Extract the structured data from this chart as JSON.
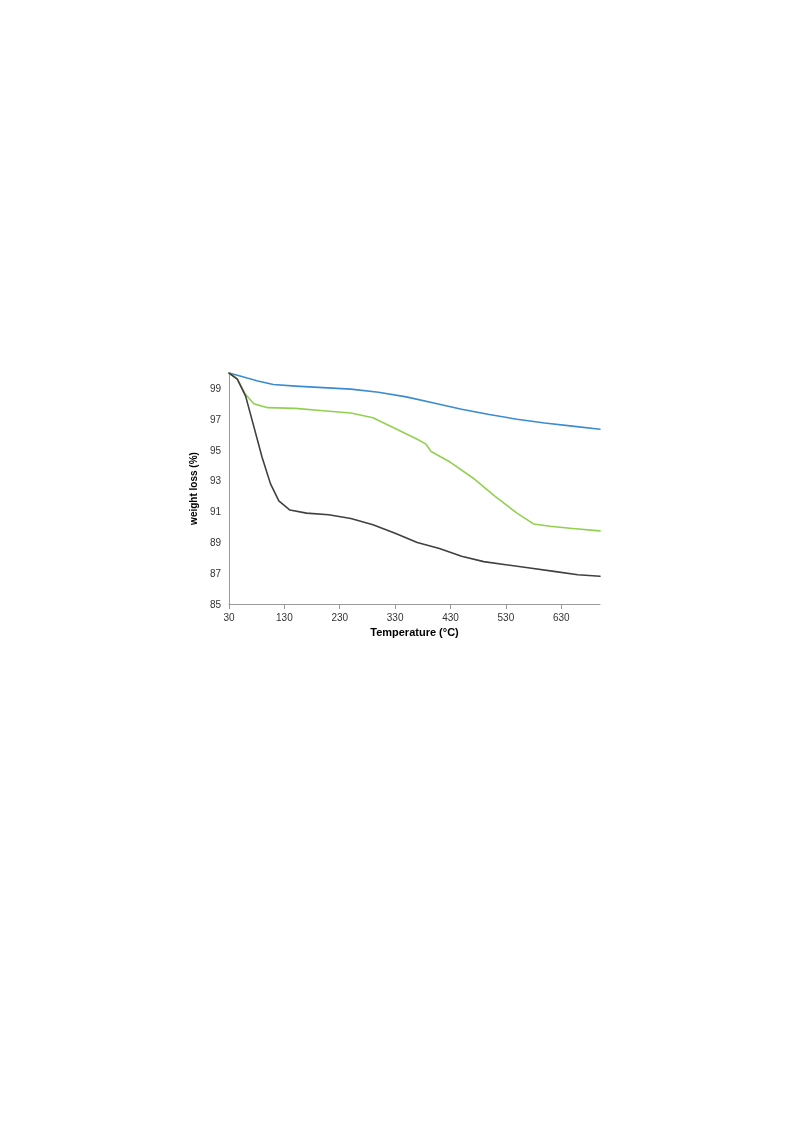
{
  "chart_data": {
    "type": "line",
    "xlabel": "Temperature (°C)",
    "ylabel": "weight loss (%)",
    "xlim": [
      30,
      700
    ],
    "xticks": [
      30,
      130,
      230,
      330,
      430,
      530,
      630
    ],
    "ylim": [
      85,
      100
    ],
    "yticks": [
      85,
      87,
      89,
      91,
      93,
      95,
      97,
      99
    ],
    "grid": false,
    "marker": "none",
    "line_style": "solid",
    "series": [
      {
        "color": "#3b8bd0",
        "x": [
          30,
          50,
          80,
          110,
          150,
          200,
          250,
          300,
          350,
          400,
          450,
          500,
          550,
          600,
          650,
          700
        ],
        "values": [
          100,
          99.8,
          99.5,
          99.25,
          99.15,
          99.05,
          98.95,
          98.75,
          98.45,
          98.05,
          97.65,
          97.3,
          97.0,
          96.75,
          96.55,
          96.35
        ]
      },
      {
        "color": "#92d050",
        "x": [
          30,
          45,
          60,
          75,
          100,
          150,
          200,
          250,
          290,
          330,
          370,
          385,
          395,
          430,
          470,
          510,
          550,
          580,
          610,
          650,
          700
        ],
        "values": [
          100,
          99.6,
          98.6,
          98.0,
          97.75,
          97.7,
          97.55,
          97.4,
          97.1,
          96.4,
          95.7,
          95.4,
          94.9,
          94.2,
          93.2,
          92.0,
          90.9,
          90.2,
          90.05,
          89.9,
          89.75
        ]
      },
      {
        "color": "#404040",
        "x": [
          30,
          45,
          60,
          75,
          90,
          105,
          120,
          140,
          170,
          210,
          250,
          290,
          330,
          370,
          410,
          450,
          490,
          530,
          570,
          620,
          660,
          700
        ],
        "values": [
          100,
          99.6,
          98.5,
          96.5,
          94.5,
          92.8,
          91.7,
          91.1,
          90.9,
          90.8,
          90.55,
          90.15,
          89.6,
          89.0,
          88.6,
          88.1,
          87.75,
          87.55,
          87.35,
          87.1,
          86.9,
          86.8
        ]
      }
    ]
  }
}
